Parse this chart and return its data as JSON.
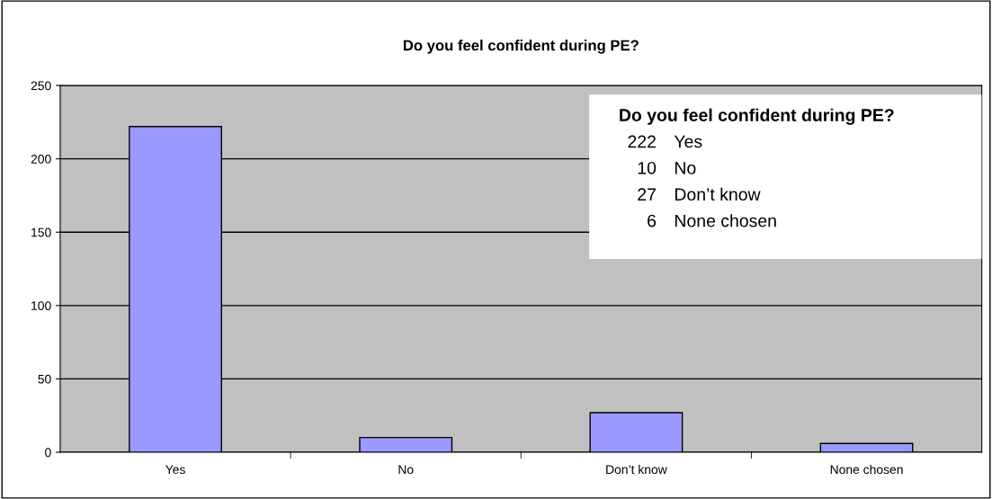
{
  "chart_data": {
    "type": "bar",
    "title": "Do you feel confident during PE?",
    "categories": [
      "Yes",
      "No",
      "Don’t know",
      "None chosen"
    ],
    "values": [
      222,
      10,
      27,
      6
    ],
    "color": "#9999ff",
    "ylim": [
      0,
      250
    ],
    "yticks": [
      0,
      50,
      100,
      150,
      200,
      250
    ],
    "grid": "y",
    "annotations": [
      "Do you feel confident during PE?",
      "222",
      "10",
      "27",
      "6"
    ]
  }
}
